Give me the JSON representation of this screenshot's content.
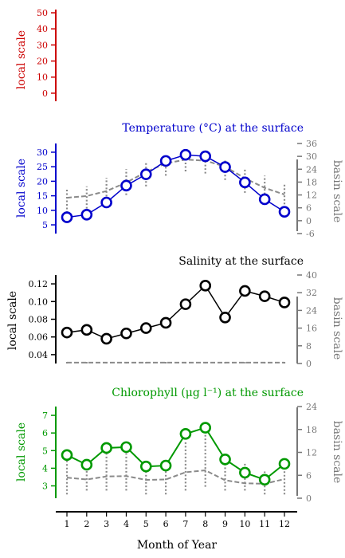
{
  "figure": {
    "xlabel": "Month of Year",
    "x_ticks": [
      "1",
      "2",
      "3",
      "4",
      "5",
      "6",
      "7",
      "8",
      "9",
      "10",
      "11",
      "12"
    ]
  },
  "chart_data": [
    {
      "id": "empty",
      "type": "line",
      "title": "",
      "ylabel_left": "local scale",
      "ylabel_right": "",
      "left_color": "#cc0000",
      "ylim_left": [
        -5,
        52
      ],
      "y_ticks_left": [
        "0",
        "10",
        "20",
        "30",
        "40",
        "50"
      ],
      "series": []
    },
    {
      "id": "temperature",
      "type": "line",
      "title": "Temperature (°C) at the surface",
      "ylabel_left": "local scale",
      "ylabel_right": "basin scale",
      "left_color": "#0000cc",
      "right_color": "#777777",
      "ylim_left": [
        2,
        33
      ],
      "ylim_right": [
        -6,
        36
      ],
      "y_ticks_left": [
        "5",
        "10",
        "15",
        "20",
        "25",
        "30"
      ],
      "y_ticks_right": [
        "-6",
        "0",
        "6",
        "12",
        "18",
        "24",
        "30",
        "36"
      ],
      "x": [
        1,
        2,
        3,
        4,
        5,
        6,
        7,
        8,
        9,
        10,
        11,
        12
      ],
      "local_values": [
        7.6,
        8.5,
        12.7,
        18.5,
        22.4,
        27,
        29.1,
        28.6,
        24.9,
        19.6,
        13.8,
        9.5
      ],
      "basin_values": [
        10.7,
        11.5,
        13.8,
        17.8,
        22.7,
        26.7,
        28.5,
        28,
        25.2,
        19.8,
        15.3,
        12.2
      ],
      "basin_ranges": [
        [
          2,
          15
        ],
        [
          4,
          16
        ],
        [
          8,
          20
        ],
        [
          12,
          24
        ],
        [
          16,
          27
        ],
        [
          21,
          31
        ],
        [
          23,
          32
        ],
        [
          22,
          30
        ],
        [
          19,
          28
        ],
        [
          13,
          24
        ],
        [
          9,
          21
        ],
        [
          6,
          17
        ]
      ]
    },
    {
      "id": "salinity",
      "type": "line",
      "title": "Salinity at the surface",
      "ylabel_left": "local scale",
      "ylabel_right": "basin scale",
      "left_color": "#000000",
      "right_color": "#777777",
      "ylim_left": [
        0.03,
        0.13
      ],
      "ylim_right": [
        0,
        40
      ],
      "y_ticks_left": [
        "0.04",
        "0.06",
        "0.08",
        "0.10",
        "0.12"
      ],
      "y_ticks_right": [
        "0",
        "8",
        "16",
        "24",
        "32",
        "40"
      ],
      "x": [
        1,
        2,
        3,
        4,
        5,
        6,
        7,
        8,
        9,
        10,
        11,
        12
      ],
      "local_values": [
        0.065,
        0.068,
        0.058,
        0.064,
        0.07,
        0.076,
        0.097,
        0.118,
        0.082,
        0.112,
        0.106,
        0.099
      ],
      "basin_values": [
        0.4,
        0.4,
        0.4,
        0.4,
        0.4,
        0.4,
        0.4,
        0.4,
        0.4,
        0.4,
        0.4,
        0.4
      ],
      "basin_ranges": [
        [
          0,
          1
        ],
        [
          0,
          1
        ],
        [
          0,
          1
        ],
        [
          0,
          1
        ],
        [
          0,
          1
        ],
        [
          0,
          1
        ],
        [
          0,
          1.5
        ],
        [
          0,
          1.5
        ],
        [
          0,
          1
        ],
        [
          0,
          1.2
        ],
        [
          0,
          1
        ],
        [
          0,
          1
        ]
      ]
    },
    {
      "id": "chlorophyll",
      "type": "line",
      "title": "Chlorophyll (μg l⁻¹) at the surface",
      "ylabel_left": "local scale",
      "ylabel_right": "basin scale",
      "left_color": "#009900",
      "right_color": "#777777",
      "ylim_left": [
        2.3,
        7.5
      ],
      "ylim_right": [
        0,
        24
      ],
      "y_ticks_left": [
        "3",
        "4",
        "5",
        "6",
        "7"
      ],
      "y_ticks_right": [
        "0",
        "6",
        "12",
        "18",
        "24"
      ],
      "x": [
        1,
        2,
        3,
        4,
        5,
        6,
        7,
        8,
        9,
        10,
        11,
        12
      ],
      "local_values": [
        4.75,
        4.2,
        5.15,
        5.2,
        4.1,
        4.15,
        5.95,
        6.3,
        4.5,
        3.75,
        3.35,
        4.25
      ],
      "basin_values": [
        5.4,
        4.9,
        5.7,
        5.8,
        4.8,
        4.9,
        6.8,
        7.3,
        4.7,
        3.9,
        3.8,
        5.0
      ],
      "basin_ranges": [
        [
          1,
          11
        ],
        [
          2,
          10
        ],
        [
          2,
          12
        ],
        [
          2,
          13
        ],
        [
          1,
          9
        ],
        [
          1,
          10
        ],
        [
          2,
          15
        ],
        [
          3,
          17
        ],
        [
          2,
          11
        ],
        [
          2,
          9
        ],
        [
          1,
          7
        ],
        [
          1,
          9
        ]
      ]
    }
  ]
}
